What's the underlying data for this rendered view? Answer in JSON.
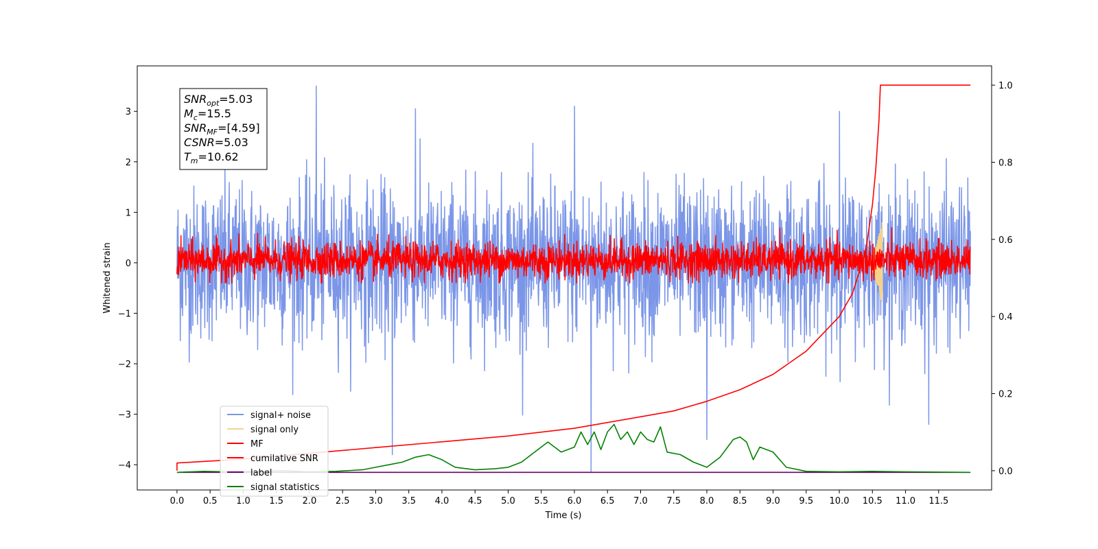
{
  "chart_data": {
    "type": "line",
    "title": "",
    "xlabel": "Time (s)",
    "ylabel": "Whitened strain",
    "y2label": "",
    "xlim": [
      -0.6,
      12.3
    ],
    "ylim": [
      -4.5,
      3.9
    ],
    "y2lim": [
      -0.05,
      1.05
    ],
    "x_ticks": [
      "0.0",
      "0.5",
      "1.0",
      "1.5",
      "2.0",
      "2.5",
      "3.0",
      "3.5",
      "4.0",
      "4.5",
      "5.0",
      "5.5",
      "6.0",
      "6.5",
      "7.0",
      "7.5",
      "8.0",
      "8.5",
      "9.0",
      "9.5",
      "10.0",
      "10.5",
      "11.0",
      "11.5"
    ],
    "y_ticks": [
      "-4",
      "-3",
      "-2",
      "-1",
      "0",
      "1",
      "2",
      "3"
    ],
    "y2_ticks": [
      "0.0",
      "0.2",
      "0.4",
      "0.6",
      "0.8",
      "1.0"
    ],
    "info_box": {
      "lines": [
        {
          "sym": "SNR",
          "sub": "opt",
          "val": "=5.03"
        },
        {
          "sym": "M",
          "sub": "c",
          "val": "=15.5"
        },
        {
          "sym": "SNR",
          "sub": "MF",
          "val": "=[4.59]"
        },
        {
          "sym": "CSNR",
          "sub": "",
          "val": "=5.03"
        },
        {
          "sym": "T",
          "sub": "m",
          "val": "=10.62"
        }
      ]
    },
    "legend": {
      "placement": "lower-left",
      "entries": [
        {
          "label": "signal+ noise",
          "color": "#7b96e8"
        },
        {
          "label": "signal only",
          "color": "#f5d38a"
        },
        {
          "label": "MF",
          "color": "#ff0000"
        },
        {
          "label": "cumilative SNR",
          "color": "#ff0000"
        },
        {
          "label": "label",
          "color": "#6a006a"
        },
        {
          "label": "signal statistics",
          "color": "#008000"
        }
      ]
    },
    "series": [
      {
        "name": "signal+ noise",
        "axis": "left",
        "color": "#7b96e8",
        "x_range": [
          0,
          11.98
        ],
        "envelope": {
          "typical": [
            -1.5,
            1.6
          ],
          "max": 3.5,
          "min": -4.15
        },
        "peaks": [
          [
            2.1,
            3.5
          ],
          [
            6.0,
            3.1
          ],
          [
            3.6,
            3.05
          ],
          [
            10.0,
            3.0
          ],
          [
            6.25,
            -4.15
          ],
          [
            3.25,
            -3.8
          ],
          [
            8.0,
            -3.5
          ],
          [
            11.35,
            -3.2
          ]
        ]
      },
      {
        "name": "signal only",
        "axis": "left",
        "color": "#f5d38a",
        "x_range": [
          10.38,
          10.65
        ],
        "peak_amplitude": 0.85
      },
      {
        "name": "MF",
        "axis": "left",
        "color": "#ff0000",
        "x_range": [
          0,
          11.98
        ],
        "envelope": {
          "typical": [
            -0.3,
            0.5
          ],
          "max": 1.0,
          "min": -0.4
        }
      },
      {
        "name": "cumilative SNR",
        "axis": "right",
        "color": "#ff0000",
        "x": [
          0.0,
          0.0,
          1.0,
          2.0,
          3.0,
          4.0,
          5.0,
          6.0,
          6.5,
          7.0,
          7.5,
          8.0,
          8.5,
          9.0,
          9.5,
          10.0,
          10.2,
          10.4,
          10.5,
          10.55,
          10.6,
          10.62,
          11.98
        ],
        "y": [
          0.0,
          0.02,
          0.03,
          0.045,
          0.06,
          0.075,
          0.09,
          0.11,
          0.125,
          0.14,
          0.155,
          0.18,
          0.21,
          0.25,
          0.31,
          0.4,
          0.46,
          0.57,
          0.69,
          0.78,
          0.91,
          1.0,
          1.0
        ]
      },
      {
        "name": "label",
        "axis": "left",
        "color": "#6a006a",
        "x": [
          0.0,
          11.98
        ],
        "y": [
          -4.15,
          -4.15
        ]
      },
      {
        "name": "signal statistics",
        "axis": "left",
        "color": "#008000",
        "x": [
          0.0,
          0.4,
          0.8,
          1.2,
          1.6,
          2.0,
          2.4,
          2.8,
          3.0,
          3.2,
          3.4,
          3.6,
          3.8,
          4.0,
          4.2,
          4.5,
          4.8,
          5.0,
          5.2,
          5.4,
          5.6,
          5.8,
          6.0,
          6.1,
          6.2,
          6.3,
          6.4,
          6.5,
          6.6,
          6.7,
          6.8,
          6.9,
          7.0,
          7.1,
          7.2,
          7.3,
          7.4,
          7.6,
          7.8,
          8.0,
          8.2,
          8.4,
          8.5,
          8.6,
          8.7,
          8.8,
          9.0,
          9.2,
          9.5,
          10.0,
          10.5,
          11.0,
          11.98
        ],
        "y": [
          -4.15,
          -4.13,
          -4.14,
          -4.13,
          -4.12,
          -4.14,
          -4.13,
          -4.1,
          -4.05,
          -4.0,
          -3.95,
          -3.85,
          -3.8,
          -3.9,
          -4.05,
          -4.1,
          -4.08,
          -4.05,
          -3.95,
          -3.75,
          -3.55,
          -3.75,
          -3.65,
          -3.35,
          -3.6,
          -3.35,
          -3.7,
          -3.35,
          -3.2,
          -3.5,
          -3.35,
          -3.6,
          -3.35,
          -3.5,
          -3.55,
          -3.25,
          -3.75,
          -3.8,
          -3.95,
          -4.05,
          -3.85,
          -3.5,
          -3.45,
          -3.55,
          -3.9,
          -3.65,
          -3.75,
          -4.05,
          -4.13,
          -4.14,
          -4.13,
          -4.14,
          -4.15
        ]
      }
    ]
  }
}
